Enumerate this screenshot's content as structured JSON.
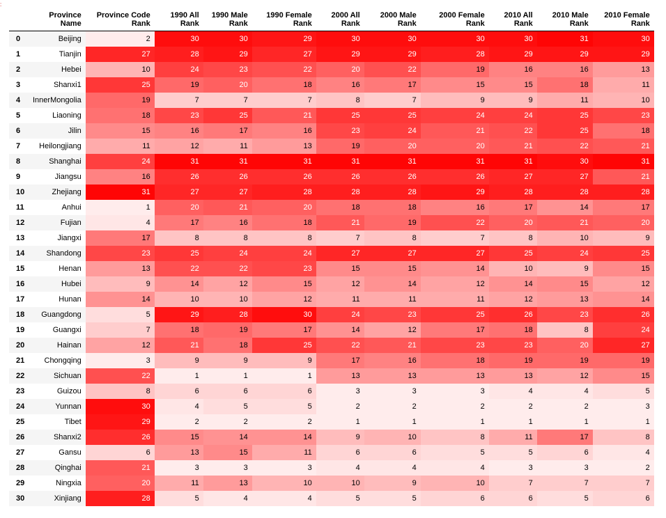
{
  "columns": [
    "",
    "Province Name",
    "Province Code Rank",
    "1990 All Rank",
    "1990 Male Rank",
    "1990 Female Rank",
    "2000 All Rank",
    "2000 Male Rank",
    "2000 Female Rank",
    "2010 All Rank",
    "2010 Male Rank",
    "2010 Female Rank"
  ],
  "max_rank": 31,
  "heat_color": "#ff0000",
  "rows": [
    {
      "index": "0",
      "name": "Beijing",
      "ranks": [
        2,
        30,
        30,
        29,
        30,
        30,
        30,
        30,
        31,
        30
      ]
    },
    {
      "index": "1",
      "name": "Tianjin",
      "ranks": [
        27,
        28,
        29,
        27,
        29,
        29,
        28,
        29,
        29,
        29
      ]
    },
    {
      "index": "2",
      "name": "Hebei",
      "ranks": [
        10,
        24,
        23,
        22,
        20,
        22,
        19,
        16,
        16,
        13
      ]
    },
    {
      "index": "3",
      "name": "Shanxi1",
      "ranks": [
        25,
        19,
        20,
        18,
        16,
        17,
        15,
        15,
        18,
        11
      ]
    },
    {
      "index": "4",
      "name": "InnerMongolia",
      "ranks": [
        19,
        7,
        7,
        7,
        8,
        7,
        9,
        9,
        11,
        10
      ]
    },
    {
      "index": "5",
      "name": "Liaoning",
      "ranks": [
        18,
        23,
        25,
        21,
        25,
        25,
        24,
        24,
        25,
        23
      ]
    },
    {
      "index": "6",
      "name": "Jilin",
      "ranks": [
        15,
        16,
        17,
        16,
        23,
        24,
        21,
        22,
        25,
        18
      ]
    },
    {
      "index": "7",
      "name": "Heilongjiang",
      "ranks": [
        11,
        12,
        11,
        13,
        19,
        20,
        20,
        21,
        22,
        21
      ]
    },
    {
      "index": "8",
      "name": "Shanghai",
      "ranks": [
        24,
        31,
        31,
        31,
        31,
        31,
        31,
        31,
        30,
        31
      ]
    },
    {
      "index": "9",
      "name": "Jiangsu",
      "ranks": [
        16,
        26,
        26,
        26,
        26,
        26,
        26,
        27,
        27,
        21
      ]
    },
    {
      "index": "10",
      "name": "Zhejiang",
      "ranks": [
        31,
        27,
        27,
        28,
        28,
        28,
        29,
        28,
        28,
        28
      ]
    },
    {
      "index": "11",
      "name": "Anhui",
      "ranks": [
        1,
        20,
        21,
        20,
        18,
        18,
        16,
        17,
        14,
        17
      ]
    },
    {
      "index": "12",
      "name": "Fujian",
      "ranks": [
        4,
        17,
        16,
        18,
        21,
        19,
        22,
        20,
        21,
        20
      ]
    },
    {
      "index": "13",
      "name": "Jiangxi",
      "ranks": [
        17,
        8,
        8,
        8,
        7,
        8,
        7,
        8,
        10,
        9
      ]
    },
    {
      "index": "14",
      "name": "Shandong",
      "ranks": [
        23,
        25,
        24,
        24,
        27,
        27,
        27,
        25,
        24,
        25
      ]
    },
    {
      "index": "15",
      "name": "Henan",
      "ranks": [
        13,
        22,
        22,
        23,
        15,
        15,
        14,
        10,
        9,
        15
      ]
    },
    {
      "index": "16",
      "name": "Hubei",
      "ranks": [
        9,
        14,
        12,
        15,
        12,
        14,
        12,
        14,
        15,
        12
      ]
    },
    {
      "index": "17",
      "name": "Hunan",
      "ranks": [
        14,
        10,
        10,
        12,
        11,
        11,
        11,
        12,
        13,
        14
      ]
    },
    {
      "index": "18",
      "name": "Guangdong",
      "ranks": [
        5,
        29,
        28,
        30,
        24,
        23,
        25,
        26,
        23,
        26
      ]
    },
    {
      "index": "19",
      "name": "Guangxi",
      "ranks": [
        7,
        18,
        19,
        17,
        14,
        12,
        17,
        18,
        8,
        24
      ]
    },
    {
      "index": "20",
      "name": "Hainan",
      "ranks": [
        12,
        21,
        18,
        25,
        22,
        21,
        23,
        23,
        20,
        27
      ]
    },
    {
      "index": "21",
      "name": "Chongqing",
      "ranks": [
        3,
        9,
        9,
        9,
        17,
        16,
        18,
        19,
        19,
        19
      ]
    },
    {
      "index": "22",
      "name": "Sichuan",
      "ranks": [
        22,
        1,
        1,
        1,
        13,
        13,
        13,
        13,
        12,
        15
      ]
    },
    {
      "index": "23",
      "name": "Guizou",
      "ranks": [
        8,
        6,
        6,
        6,
        3,
        3,
        3,
        4,
        4,
        5
      ]
    },
    {
      "index": "24",
      "name": "Yunnan",
      "ranks": [
        30,
        4,
        5,
        5,
        2,
        2,
        2,
        2,
        2,
        3
      ]
    },
    {
      "index": "25",
      "name": "Tibet",
      "ranks": [
        29,
        2,
        2,
        2,
        1,
        1,
        1,
        1,
        1,
        1
      ]
    },
    {
      "index": "26",
      "name": "Shanxi2",
      "ranks": [
        26,
        15,
        14,
        14,
        9,
        10,
        8,
        11,
        17,
        8
      ]
    },
    {
      "index": "27",
      "name": "Gansu",
      "ranks": [
        6,
        13,
        15,
        11,
        6,
        6,
        5,
        5,
        6,
        4
      ]
    },
    {
      "index": "28",
      "name": "Qinghai",
      "ranks": [
        21,
        3,
        3,
        3,
        4,
        4,
        4,
        3,
        3,
        2
      ]
    },
    {
      "index": "29",
      "name": "Ningxia",
      "ranks": [
        20,
        11,
        13,
        10,
        10,
        9,
        10,
        7,
        7,
        7
      ]
    },
    {
      "index": "30",
      "name": "Xinjiang",
      "ranks": [
        28,
        5,
        4,
        4,
        5,
        5,
        6,
        6,
        5,
        6
      ]
    }
  ]
}
